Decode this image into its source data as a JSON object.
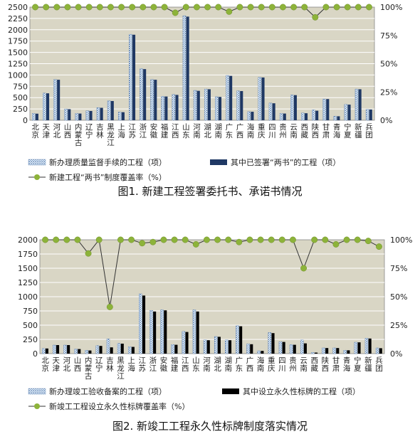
{
  "chart_data": [
    {
      "type": "bar",
      "title": "图1. 新建工程签署委托书、承诺书情况",
      "categories": [
        "北京",
        "天津",
        "河北",
        "山西",
        "内蒙古",
        "辽宁",
        "吉林",
        "黑龙江",
        "上海",
        "江苏",
        "浙江",
        "安徽",
        "福建",
        "江西",
        "山东",
        "河南",
        "湖北",
        "湖南",
        "广东",
        "广西",
        "海南",
        "重庆",
        "四川",
        "贵州",
        "云南",
        "西藏",
        "陕西",
        "甘肃",
        "青海",
        "宁夏",
        "新疆",
        "兵团"
      ],
      "ylim": [
        0,
        2500
      ],
      "yticks": [
        "0",
        "250",
        "500",
        "750",
        "1000",
        "1250",
        "1500",
        "1750",
        "2000",
        "2250",
        "2500"
      ],
      "y2lim": [
        0,
        100
      ],
      "y2ticks": [
        "0%",
        "25%",
        "50%",
        "75%",
        "100%"
      ],
      "series": [
        {
          "name": "新办理质量监督手续的工程（项）",
          "kind": "bar",
          "pattern": "dotted",
          "color": "#8fb3d9",
          "values": [
            150,
            600,
            900,
            250,
            150,
            210,
            280,
            430,
            180,
            1900,
            1140,
            900,
            530,
            570,
            2310,
            660,
            690,
            520,
            990,
            650,
            190,
            950,
            380,
            150,
            560,
            160,
            230,
            470,
            90,
            350,
            690,
            240
          ]
        },
        {
          "name": "其中已签署“两书”的工程（项）",
          "kind": "bar",
          "pattern": "solid",
          "color": "#1f3864",
          "values": [
            145,
            595,
            895,
            245,
            148,
            205,
            275,
            425,
            178,
            1890,
            1130,
            895,
            525,
            560,
            2290,
            650,
            685,
            515,
            980,
            645,
            188,
            945,
            375,
            148,
            555,
            155,
            210,
            468,
            88,
            345,
            685,
            238
          ]
        },
        {
          "name": "新建工程“两书”制度覆盖率（%）",
          "kind": "line",
          "axis": "right",
          "color": "#8db33a",
          "values": [
            100,
            100,
            100,
            100,
            100,
            100,
            100,
            100,
            100,
            100,
            100,
            100,
            100,
            95,
            100,
            100,
            100,
            100,
            96,
            100,
            100,
            100,
            100,
            100,
            100,
            100,
            91,
            100,
            100,
            100,
            100,
            100
          ]
        }
      ],
      "legend": "bottom",
      "grid": true,
      "bg": "#d9d6c5"
    },
    {
      "type": "bar",
      "title": "图2. 新竣工工程永久性标牌制度落实情况",
      "categories": [
        "北京",
        "天津",
        "河北",
        "山西",
        "内蒙古",
        "辽宁",
        "吉林",
        "黑龙江",
        "上海",
        "江苏",
        "浙江",
        "安徽",
        "福建",
        "江西",
        "山东",
        "河南",
        "湖北",
        "湖南",
        "广东",
        "广西",
        "海南",
        "重庆",
        "四川",
        "贵州",
        "云南",
        "西藏",
        "陕西",
        "甘肃",
        "青海",
        "宁夏",
        "新疆",
        "兵团"
      ],
      "ylim": [
        0,
        2000
      ],
      "yticks": [
        "0",
        "250",
        "500",
        "750",
        "1000",
        "1250",
        "1500",
        "1750",
        "2000"
      ],
      "y2lim": [
        0,
        100
      ],
      "y2ticks": [
        "0%",
        "25%",
        "50%",
        "75%",
        "100%"
      ],
      "series": [
        {
          "name": "新办理竣工验收备案的工程（项）",
          "kind": "bar",
          "pattern": "dotted",
          "color": "#8fb3d9",
          "values": [
            90,
            150,
            150,
            80,
            60,
            140,
            260,
            180,
            120,
            1050,
            760,
            770,
            160,
            390,
            770,
            240,
            300,
            240,
            490,
            170,
            50,
            370,
            210,
            160,
            240,
            20,
            100,
            100,
            60,
            200,
            270,
            100
          ]
        },
        {
          "name": "其中设立永久性标牌的工程（项）",
          "kind": "bar",
          "pattern": "solid",
          "color": "#000000",
          "values": [
            90,
            150,
            150,
            80,
            55,
            135,
            110,
            175,
            118,
            1020,
            740,
            760,
            155,
            380,
            740,
            235,
            295,
            235,
            480,
            165,
            48,
            360,
            205,
            155,
            180,
            18,
            98,
            98,
            58,
            198,
            265,
            95
          ]
        },
        {
          "name": "新竣工工程设立永久性标牌覆盖率（%）",
          "kind": "line",
          "axis": "right",
          "color": "#8db33a",
          "values": [
            100,
            100,
            100,
            100,
            88,
            100,
            41,
            100,
            100,
            97,
            98,
            100,
            100,
            100,
            96,
            100,
            100,
            100,
            98,
            100,
            100,
            100,
            100,
            100,
            75,
            100,
            100,
            96,
            100,
            100,
            99,
            94
          ]
        }
      ],
      "legend": "bottom",
      "grid": true,
      "bg": "#d9d6c5"
    }
  ]
}
